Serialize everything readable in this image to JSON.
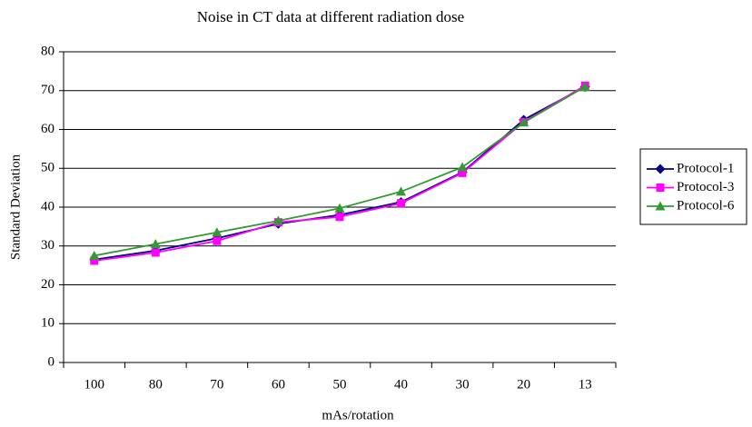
{
  "chart_data": {
    "type": "line",
    "title": "Noise in CT data at different radiation dose",
    "xlabel": "mAs/rotation",
    "ylabel": "Standard Deviation",
    "categories": [
      "100",
      "80",
      "70",
      "60",
      "50",
      "40",
      "30",
      "20",
      "13"
    ],
    "series": [
      {
        "name": "Protocol-1",
        "color": "#000080",
        "marker": "diamond",
        "values": [
          26.5,
          28.8,
          32,
          35.7,
          38,
          41.3,
          49,
          62.5,
          71
        ]
      },
      {
        "name": "Protocol-3",
        "color": "#ff00ff",
        "marker": "square",
        "values": [
          26.2,
          28.3,
          31.3,
          36.1,
          37.5,
          41,
          48.8,
          61.9,
          71.3
        ]
      },
      {
        "name": "Protocol-6",
        "color": "#339933",
        "marker": "triangle",
        "values": [
          27.5,
          30.5,
          33.5,
          36.5,
          39.7,
          44,
          50.3,
          61.8,
          71
        ]
      }
    ],
    "ylim": [
      0,
      80
    ],
    "yticks": [
      0,
      10,
      20,
      30,
      40,
      50,
      60,
      70,
      80
    ],
    "grid": true,
    "legend": "right"
  }
}
